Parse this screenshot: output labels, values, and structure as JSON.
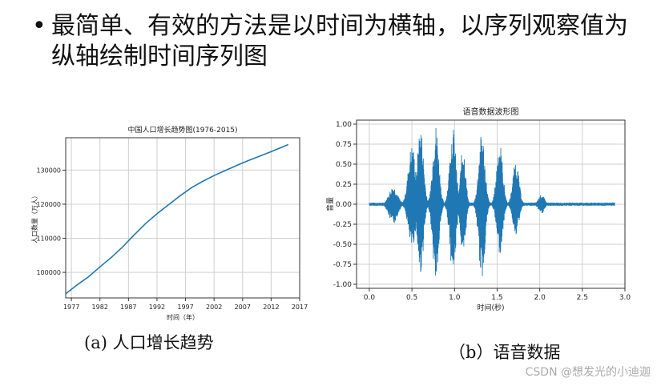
{
  "slide": {
    "bullet": "最简单、有效的方法是以时间为横轴，以序列观察值为纵轴绘制时间序列图",
    "caption_a": "(a) 人口增长趋势",
    "caption_b": "（b）语音数据",
    "watermark": "CSDN @想发光的小迪迦"
  },
  "chart_data": [
    {
      "type": "line",
      "title": "中国人口增长趋势图(1976-2015)",
      "xlabel": "时间（年）",
      "ylabel": "人口数量（万人）",
      "xlim": [
        1976,
        2017
      ],
      "ylim": [
        92500,
        139500
      ],
      "x_ticks": [
        1977,
        1982,
        1987,
        1992,
        1997,
        2002,
        2007,
        2012,
        2017
      ],
      "y_ticks": [
        100000,
        110000,
        120000,
        130000
      ],
      "grid": true,
      "color": "#1f77b4",
      "series": [
        {
          "x": [
            1976,
            1978,
            1980,
            1982,
            1984,
            1986,
            1988,
            1990,
            1992,
            1994,
            1996,
            1998,
            2000,
            2002,
            2004,
            2006,
            2008,
            2010,
            2012,
            2014,
            2015
          ],
          "y": [
            93700,
            96300,
            98700,
            101600,
            104400,
            107500,
            111000,
            114300,
            117200,
            119800,
            122400,
            124800,
            126700,
            128400,
            129900,
            131400,
            132800,
            134100,
            135400,
            136800,
            137500
          ]
        }
      ]
    },
    {
      "type": "line",
      "title": "语音数据波形图",
      "xlabel": "时间(秒)",
      "ylabel": "音量",
      "xlim": [
        -0.15,
        3.0
      ],
      "ylim": [
        -1.05,
        1.05
      ],
      "x_ticks": [
        0.0,
        0.5,
        1.0,
        1.5,
        2.0,
        2.5,
        3.0
      ],
      "y_ticks": [
        -1.0,
        -0.75,
        -0.5,
        -0.25,
        0.0,
        0.25,
        0.5,
        0.75,
        1.0
      ],
      "grid": true,
      "color": "#1f77b4",
      "duration": 2.88,
      "bursts": [
        {
          "center": 0.28,
          "width": 0.07,
          "max": 0.22,
          "min": -0.25
        },
        {
          "center": 0.5,
          "width": 0.06,
          "max": 0.75,
          "min": -0.55
        },
        {
          "center": 0.6,
          "width": 0.05,
          "max": 0.98,
          "min": -0.88
        },
        {
          "center": 0.78,
          "width": 0.05,
          "max": 1.0,
          "min": -0.98
        },
        {
          "center": 0.98,
          "width": 0.05,
          "max": 0.97,
          "min": -0.88
        },
        {
          "center": 1.1,
          "width": 0.04,
          "max": 0.75,
          "min": -0.72
        },
        {
          "center": 1.32,
          "width": 0.05,
          "max": 0.9,
          "min": -0.95
        },
        {
          "center": 1.53,
          "width": 0.05,
          "max": 0.78,
          "min": -0.62
        },
        {
          "center": 1.72,
          "width": 0.05,
          "max": 0.55,
          "min": -0.38
        },
        {
          "center": 2.02,
          "width": 0.05,
          "max": 0.12,
          "min": -0.12
        }
      ]
    }
  ]
}
